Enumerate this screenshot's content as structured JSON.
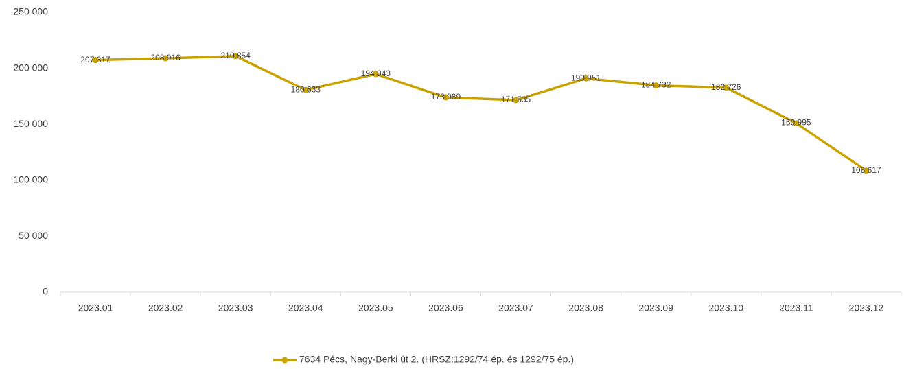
{
  "chart_data": {
    "type": "line",
    "categories": [
      "2023.01",
      "2023.02",
      "2023.03",
      "2023.04",
      "2023.05",
      "2023.06",
      "2023.07",
      "2023.08",
      "2023.09",
      "2023.10",
      "2023.11",
      "2023.12"
    ],
    "series": [
      {
        "name": "7634 Pécs, Nagy-Berki út 2. (HRSZ:1292/74 ép. és 1292/75 ép.)",
        "color": "#c9a200",
        "values": [
          207317,
          208916,
          210854,
          180633,
          194843,
          173989,
          171535,
          190951,
          184732,
          182726,
          150995,
          108617
        ],
        "value_labels": [
          "207 317",
          "208 916",
          "210 854",
          "180 633",
          "194 843",
          "173 989",
          "171 535",
          "190 951",
          "184 732",
          "182 726",
          "150 995",
          "108 617"
        ]
      }
    ],
    "ylim": [
      0,
      250000
    ],
    "yticks": [
      {
        "value": 0,
        "label": "0"
      },
      {
        "value": 50000,
        "label": "50 000"
      },
      {
        "value": 100000,
        "label": "100 000"
      },
      {
        "value": 150000,
        "label": "150 000"
      },
      {
        "value": 200000,
        "label": "200 000"
      },
      {
        "value": 250000,
        "label": "250 000"
      }
    ],
    "grid": false,
    "legend": "bottom"
  }
}
